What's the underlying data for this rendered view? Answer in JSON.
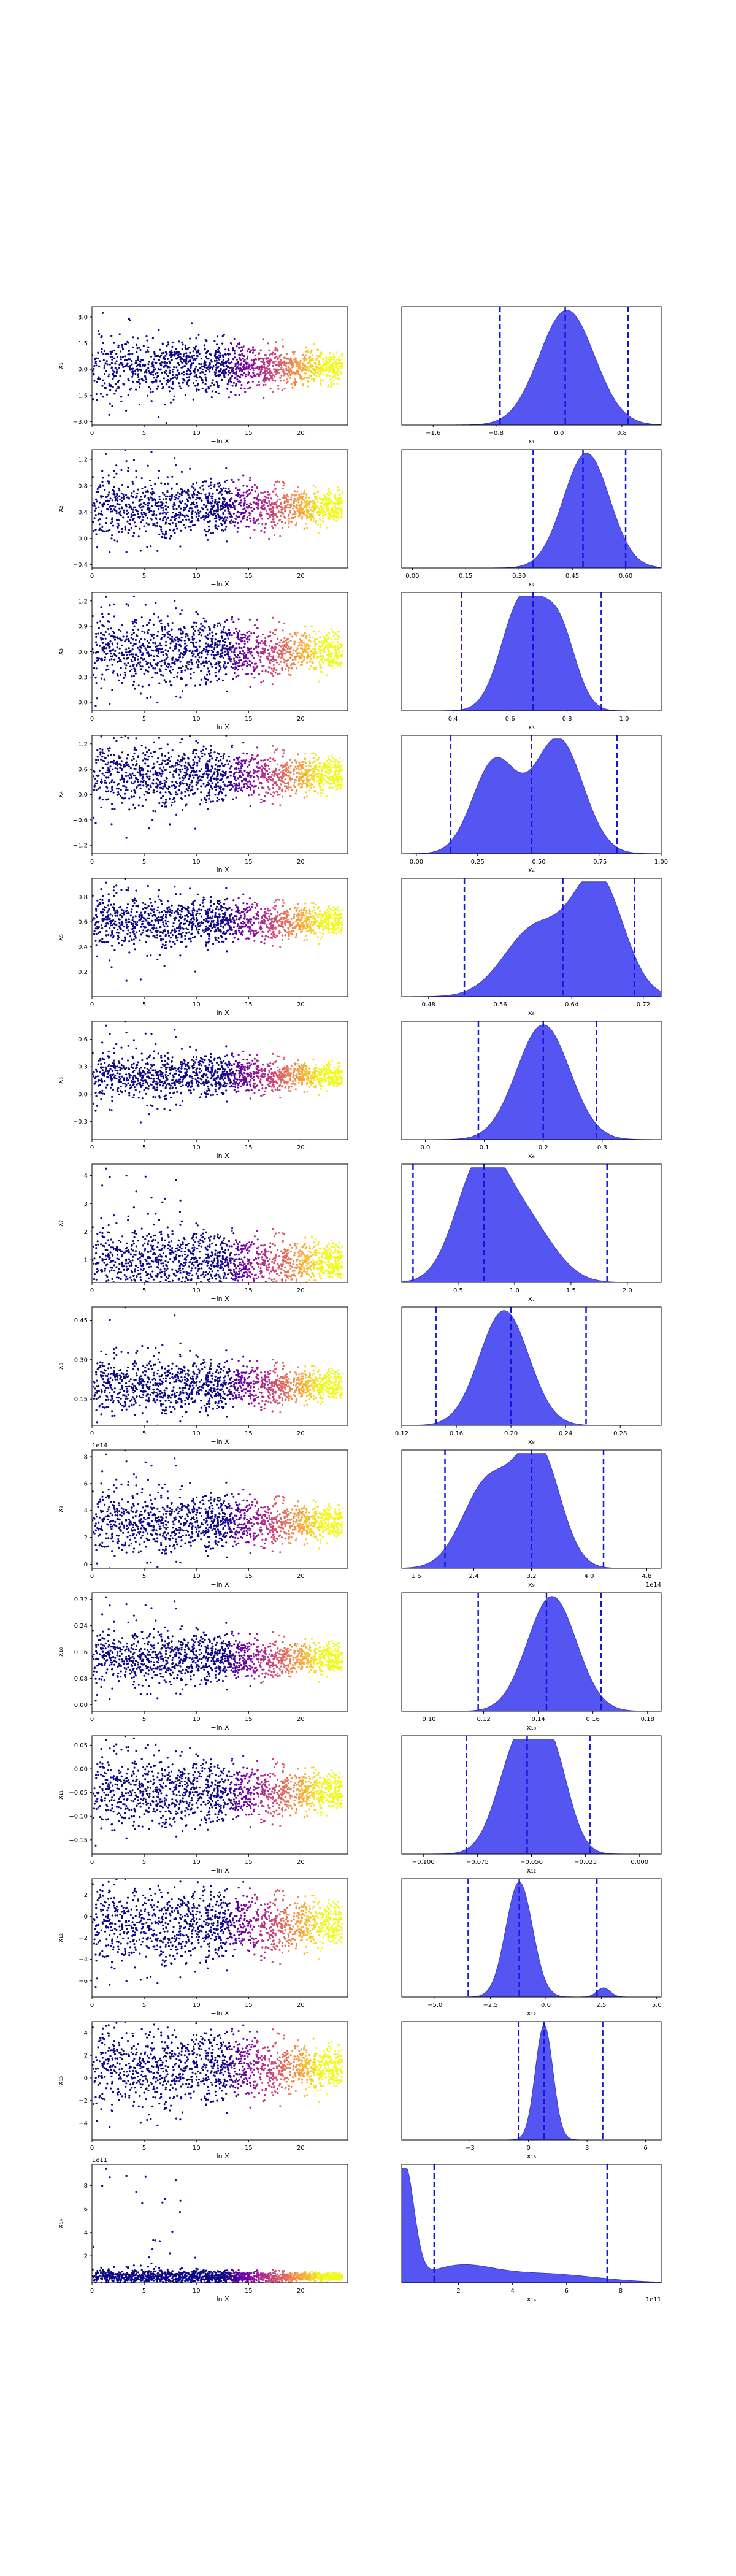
{
  "chart_data": [
    {
      "row": 1,
      "type": "scatter",
      "ylabel": "x₁",
      "xlabel": "−ln X",
      "xticks": [
        "0",
        "5",
        "10",
        "15",
        "20"
      ],
      "yticks": [
        "−3.0",
        "−1.5",
        "0.0",
        "1.5",
        "3.0"
      ],
      "xlim": [
        0,
        24.5
      ],
      "ylim": [
        -3.2,
        3.6
      ],
      "center": 0.1,
      "spread": 0.8,
      "kde": {
        "type": "area",
        "xlabel": "x₁",
        "xticks": [
          "−1.6",
          "−0.8",
          "0.0",
          "0.8"
        ],
        "xlim": [
          -2.0,
          1.3
        ],
        "vlines": [
          -0.75,
          0.08,
          0.88
        ],
        "peaks": [
          [
            0.1,
            1.0,
            0.35
          ]
        ]
      }
    },
    {
      "row": 2,
      "type": "scatter",
      "ylabel": "x₂",
      "xlabel": "−ln X",
      "xticks": [
        "0",
        "5",
        "10",
        "15",
        "20"
      ],
      "yticks": [
        "−0.4",
        "0.0",
        "0.4",
        "0.8",
        "1.2"
      ],
      "xlim": [
        0,
        24.5
      ],
      "ylim": [
        -0.45,
        1.35
      ],
      "center": 0.47,
      "spread": 0.22,
      "kde": {
        "type": "area",
        "xlabel": "x₂",
        "xticks": [
          "0.00",
          "0.15",
          "0.30",
          "0.45",
          "0.60"
        ],
        "xlim": [
          -0.03,
          0.7
        ],
        "vlines": [
          0.34,
          0.48,
          0.6
        ],
        "peaks": [
          [
            0.49,
            1.0,
            0.065
          ]
        ]
      }
    },
    {
      "row": 3,
      "type": "scatter",
      "ylabel": "x₃",
      "xlabel": "−ln X",
      "xticks": [
        "0",
        "5",
        "10",
        "15",
        "20"
      ],
      "yticks": [
        "0.0",
        "0.3",
        "0.6",
        "0.9",
        "1.2"
      ],
      "xlim": [
        0,
        24.5
      ],
      "ylim": [
        -0.1,
        1.3
      ],
      "center": 0.6,
      "spread": 0.2,
      "kde": {
        "type": "area",
        "xlabel": "x₃",
        "xticks": [
          "0.4",
          "0.6",
          "0.8",
          "1.0"
        ],
        "xlim": [
          0.22,
          1.13
        ],
        "vlines": [
          0.43,
          0.68,
          0.92
        ],
        "peaks": [
          [
            0.64,
            0.95,
            0.07
          ],
          [
            0.77,
            0.7,
            0.06
          ]
        ]
      }
    },
    {
      "row": 4,
      "type": "scatter",
      "ylabel": "x₄",
      "xlabel": "−ln X",
      "xticks": [
        "0",
        "5",
        "10",
        "15",
        "20"
      ],
      "yticks": [
        "−1.2",
        "−0.6",
        "0.0",
        "0.6",
        "1.2"
      ],
      "xlim": [
        0,
        24.5
      ],
      "ylim": [
        -1.4,
        1.4
      ],
      "center": 0.45,
      "spread": 0.35,
      "kde": {
        "type": "area",
        "xlabel": "x₄",
        "xticks": [
          "0.00",
          "0.25",
          "0.50",
          "0.75",
          "1.00"
        ],
        "xlim": [
          -0.06,
          1.0
        ],
        "vlines": [
          0.14,
          0.47,
          0.82
        ],
        "peaks": [
          [
            0.32,
            0.8,
            0.09
          ],
          [
            0.58,
            1.0,
            0.1
          ]
        ]
      }
    },
    {
      "row": 5,
      "type": "scatter",
      "ylabel": "x₅",
      "xlabel": "−ln X",
      "xticks": [
        "0",
        "5",
        "10",
        "15",
        "20"
      ],
      "yticks": [
        "0.2",
        "0.4",
        "0.6",
        "0.8"
      ],
      "xlim": [
        0,
        24.5
      ],
      "ylim": [
        0.0,
        0.95
      ],
      "center": 0.6,
      "spread": 0.1,
      "kde": {
        "type": "area",
        "xlabel": "x₅",
        "xticks": [
          "0.48",
          "0.56",
          "0.64",
          "0.72"
        ],
        "xlim": [
          0.45,
          0.74
        ],
        "vlines": [
          0.52,
          0.63,
          0.71
        ],
        "peaks": [
          [
            0.6,
            0.6,
            0.035
          ],
          [
            0.67,
            1.0,
            0.028
          ]
        ]
      }
    },
    {
      "row": 6,
      "type": "scatter",
      "ylabel": "x₆",
      "xlabel": "−ln X",
      "xticks": [
        "0",
        "5",
        "10",
        "15",
        "20"
      ],
      "yticks": [
        "−0.3",
        "0.0",
        "0.3",
        "0.6"
      ],
      "xlim": [
        0,
        24.5
      ],
      "ylim": [
        -0.5,
        0.8
      ],
      "center": 0.2,
      "spread": 0.12,
      "kde": {
        "type": "area",
        "xlabel": "x₆",
        "xticks": [
          "0.0",
          "0.1",
          "0.2",
          "0.3"
        ],
        "xlim": [
          -0.04,
          0.4
        ],
        "vlines": [
          0.09,
          0.2,
          0.29
        ],
        "peaks": [
          [
            0.2,
            1.0,
            0.045
          ]
        ]
      }
    },
    {
      "row": 7,
      "type": "scatter",
      "ylabel": "x₇",
      "xlabel": "−ln X",
      "xticks": [
        "0",
        "5",
        "10",
        "15",
        "20"
      ],
      "yticks": [
        "1",
        "2",
        "3",
        "4"
      ],
      "xlim": [
        0,
        24.5
      ],
      "ylim": [
        0.2,
        4.4
      ],
      "center": 0.9,
      "spread": 0.6,
      "kde": {
        "type": "area",
        "xlabel": "x₇",
        "xticks": [
          "0.5",
          "1.0",
          "1.5",
          "2.0"
        ],
        "xlim": [
          0.0,
          2.3
        ],
        "vlines": [
          0.1,
          0.73,
          1.82
        ],
        "peaks": [
          [
            0.7,
            1.0,
            0.22
          ],
          [
            1.1,
            0.5,
            0.25
          ]
        ]
      }
    },
    {
      "row": 8,
      "type": "scatter",
      "ylabel": "x₈",
      "xlabel": "−ln X",
      "xticks": [
        "0",
        "5",
        "10",
        "15",
        "20"
      ],
      "yticks": [
        "0.15",
        "0.30",
        "0.45"
      ],
      "xlim": [
        0,
        24.5
      ],
      "ylim": [
        0.05,
        0.5
      ],
      "center": 0.2,
      "spread": 0.05,
      "kde": {
        "type": "area",
        "xlabel": "x₈",
        "xticks": [
          "0.12",
          "0.16",
          "0.20",
          "0.24",
          "0.28"
        ],
        "xlim": [
          0.12,
          0.31
        ],
        "vlines": [
          0.145,
          0.2,
          0.255
        ],
        "peaks": [
          [
            0.195,
            1.0,
            0.018
          ]
        ]
      }
    },
    {
      "row": 9,
      "type": "scatter",
      "ylabel": "x₉",
      "xlabel": "−ln X",
      "scatter_offset": "1e14",
      "kde_offset": "1e14",
      "xticks": [
        "0",
        "5",
        "10",
        "15",
        "20"
      ],
      "yticks": [
        "0",
        "2",
        "4",
        "6",
        "8"
      ],
      "xlim": [
        0,
        24.5
      ],
      "ylim": [
        -0.3,
        8.5
      ],
      "center": 3.1,
      "spread": 1.1,
      "kde": {
        "type": "area",
        "xlabel": "x₉",
        "xticks": [
          "1.6",
          "2.4",
          "3.2",
          "4.0",
          "4.8"
        ],
        "xlim": [
          1.4,
          5.0
        ],
        "vlines": [
          2.0,
          3.2,
          4.2
        ],
        "peaks": [
          [
            2.6,
            0.75,
            0.35
          ],
          [
            3.3,
            1.0,
            0.3
          ]
        ]
      }
    },
    {
      "row": 10,
      "type": "scatter",
      "ylabel": "x₁₀",
      "xlabel": "−ln X",
      "xticks": [
        "0",
        "5",
        "10",
        "15",
        "20"
      ],
      "yticks": [
        "0.00",
        "0.08",
        "0.16",
        "0.24",
        "0.32"
      ],
      "xlim": [
        0,
        24.5
      ],
      "ylim": [
        -0.02,
        0.34
      ],
      "center": 0.14,
      "spread": 0.04,
      "kde": {
        "type": "area",
        "xlabel": "x₁₀",
        "xticks": [
          "0.10",
          "0.12",
          "0.14",
          "0.16",
          "0.18"
        ],
        "xlim": [
          0.09,
          0.185
        ],
        "vlines": [
          0.118,
          0.143,
          0.163
        ],
        "peaks": [
          [
            0.145,
            1.0,
            0.009
          ]
        ]
      }
    },
    {
      "row": 11,
      "type": "scatter",
      "ylabel": "x₁₁",
      "xlabel": "−ln X",
      "xticks": [
        "0",
        "5",
        "10",
        "15",
        "20"
      ],
      "yticks": [
        "−0.15",
        "−0.10",
        "−0.05",
        "0.00",
        "0.05"
      ],
      "xlim": [
        0,
        24.5
      ],
      "ylim": [
        -0.18,
        0.07
      ],
      "center": -0.05,
      "spread": 0.035,
      "kde": {
        "type": "area",
        "xlabel": "x₁₁",
        "xticks": [
          "−0.100",
          "−0.075",
          "−0.050",
          "−0.025",
          "0.000"
        ],
        "xlim": [
          -0.11,
          0.01
        ],
        "vlines": [
          -0.08,
          -0.052,
          -0.023
        ],
        "peaks": [
          [
            -0.055,
            1.0,
            0.01
          ],
          [
            -0.04,
            0.7,
            0.008
          ]
        ]
      }
    },
    {
      "row": 12,
      "type": "scatter",
      "ylabel": "x₁₂",
      "xlabel": "−ln X",
      "xticks": [
        "0",
        "5",
        "10",
        "15",
        "20"
      ],
      "yticks": [
        "−6",
        "−4",
        "−2",
        "0",
        "2"
      ],
      "xlim": [
        0,
        24.5
      ],
      "ylim": [
        -7.5,
        3.5
      ],
      "center": -0.8,
      "spread": 1.8,
      "kde": {
        "type": "area",
        "xlabel": "x₁₂",
        "xticks": [
          "−5.0",
          "−2.5",
          "0.0",
          "2.5",
          "5.0"
        ],
        "xlim": [
          -6.5,
          5.2
        ],
        "vlines": [
          -3.5,
          -1.2,
          2.3
        ],
        "peaks": [
          [
            -1.2,
            1.0,
            0.6
          ],
          [
            2.6,
            0.08,
            0.3
          ]
        ]
      }
    },
    {
      "row": 13,
      "type": "scatter",
      "ylabel": "x₁₃",
      "xlabel": "−ln X",
      "xticks": [
        "0",
        "5",
        "10",
        "15",
        "20"
      ],
      "yticks": [
        "−4",
        "−2",
        "0",
        "2",
        "4"
      ],
      "xlim": [
        0,
        24.5
      ],
      "ylim": [
        -5.5,
        5.0
      ],
      "center": 0.9,
      "spread": 1.7,
      "kde": {
        "type": "area",
        "xlabel": "x₁₃",
        "xticks": [
          "−3",
          "0",
          "3",
          "6"
        ],
        "xlim": [
          -6.5,
          6.8
        ],
        "vlines": [
          -0.5,
          0.8,
          3.8
        ],
        "peaks": [
          [
            0.8,
            1.0,
            0.45
          ]
        ]
      }
    },
    {
      "row": 14,
      "type": "scatter",
      "ylabel": "x₁₄",
      "xlabel": "−ln X",
      "scatter_offset": "1e11",
      "kde_offset": "1e11",
      "xticks": [
        "0",
        "5",
        "10",
        "15",
        "20"
      ],
      "yticks": [
        "2",
        "4",
        "6",
        "8"
      ],
      "xlim": [
        0,
        24.5
      ],
      "ylim": [
        -0.3,
        9.8
      ],
      "center": 0.2,
      "spread": 0.3,
      "kde": {
        "type": "area",
        "xlabel": "x₁₄",
        "xticks": [
          "2",
          "4",
          "6",
          "8"
        ],
        "xlim": [
          -0.1,
          9.5
        ],
        "vlines": [
          1.1,
          7.5
        ],
        "peaks": [
          [
            0.0,
            1.0,
            0.35
          ],
          [
            2.0,
            0.13,
            1.2
          ],
          [
            5.0,
            0.08,
            2.0
          ]
        ]
      }
    }
  ],
  "colors": {
    "kde_fill": "#5555f2",
    "kde_edge": "#3a3ad0",
    "vline": "#1515e0",
    "colormap": "plasma"
  }
}
